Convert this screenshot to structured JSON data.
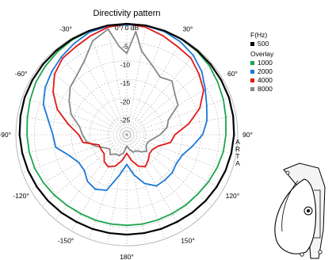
{
  "chart_data": {
    "type": "polar",
    "title": "Directivity pattern",
    "brand_vertical": "ARTA",
    "radial_labels": [
      "0°/ 0 dB",
      "-5",
      "-10",
      "-15",
      "-20",
      "-25"
    ],
    "angle_labels": [
      {
        "angle": 0,
        "text": "0°/ 0 dB"
      },
      {
        "angle": 30,
        "text": "30°"
      },
      {
        "angle": 60,
        "text": "60°"
      },
      {
        "angle": 90,
        "text": "90°"
      },
      {
        "angle": 120,
        "text": "120°"
      },
      {
        "angle": 150,
        "text": "150°"
      },
      {
        "angle": 180,
        "text": "180°"
      },
      {
        "angle": -150,
        "text": "-150°"
      },
      {
        "angle": -120,
        "text": "-120°"
      },
      {
        "angle": -90,
        "text": "-90°"
      },
      {
        "angle": -60,
        "text": "-60°"
      },
      {
        "angle": -30,
        "text": "-30°"
      }
    ],
    "r_range_db": [
      -30,
      0
    ],
    "grid": true,
    "legend": {
      "position": "right",
      "header": "F(Hz)",
      "overlay_label": "Overlay",
      "entries": [
        {
          "name": "500",
          "color": "#000000"
        },
        {
          "name": "1000",
          "color": "#1aa64a"
        },
        {
          "name": "2000",
          "color": "#1c78d6"
        },
        {
          "name": "4000",
          "color": "#e01818"
        },
        {
          "name": "8000",
          "color": "#888888"
        }
      ]
    },
    "series": [
      {
        "name": "500",
        "color": "#000000",
        "angles": [
          -180,
          -170,
          -160,
          -150,
          -140,
          -130,
          -120,
          -110,
          -100,
          -90,
          -80,
          -70,
          -60,
          -50,
          -40,
          -30,
          -20,
          -10,
          0,
          10,
          20,
          30,
          40,
          50,
          60,
          70,
          80,
          90,
          100,
          110,
          120,
          130,
          140,
          150,
          160,
          170,
          180
        ],
        "db": [
          -3.0,
          -3.0,
          -2.9,
          -2.8,
          -2.5,
          -2.2,
          -1.9,
          -1.6,
          -1.3,
          -1.0,
          -0.8,
          -0.6,
          -0.5,
          -0.4,
          -0.3,
          -0.2,
          -0.1,
          0,
          0,
          0,
          -0.1,
          -0.2,
          -0.3,
          -0.4,
          -0.5,
          -0.6,
          -0.8,
          -1.0,
          -1.3,
          -1.6,
          -1.9,
          -2.2,
          -2.5,
          -2.8,
          -2.9,
          -3.0,
          -3.0
        ]
      },
      {
        "name": "1000",
        "color": "#1aa64a",
        "angles": [
          -180,
          -170,
          -160,
          -150,
          -140,
          -130,
          -120,
          -110,
          -100,
          -90,
          -80,
          -70,
          -60,
          -50,
          -40,
          -30,
          -20,
          -10,
          0,
          10,
          20,
          30,
          40,
          50,
          60,
          70,
          80,
          90,
          100,
          110,
          120,
          130,
          140,
          150,
          160,
          170,
          180
        ],
        "db": [
          -5.5,
          -5.5,
          -5.4,
          -5.3,
          -5.0,
          -4.5,
          -4.0,
          -3.5,
          -3.2,
          -3.0,
          -2.7,
          -2.2,
          -1.6,
          -1.2,
          -0.8,
          -0.4,
          -0.2,
          0,
          0,
          0,
          -0.1,
          -0.2,
          -0.5,
          -0.9,
          -1.6,
          -2.2,
          -2.8,
          -3.2,
          -3.5,
          -4.0,
          -4.5,
          -5.0,
          -5.2,
          -5.4,
          -5.5,
          -5.5,
          -5.5
        ]
      },
      {
        "name": "2000",
        "color": "#1c78d6",
        "angles": [
          -180,
          -170,
          -160,
          -150,
          -140,
          -130,
          -120,
          -110,
          -100,
          -90,
          -80,
          -70,
          -60,
          -50,
          -40,
          -30,
          -20,
          -10,
          0,
          10,
          20,
          30,
          40,
          50,
          60,
          70,
          80,
          90,
          100,
          110,
          120,
          130,
          140,
          150,
          160,
          170,
          180
        ],
        "db": [
          -22,
          -19,
          -14,
          -13,
          -13.5,
          -15,
          -15,
          -13.5,
          -10.5,
          -10,
          -8.5,
          -6,
          -4.5,
          -3.5,
          -2.5,
          -1.5,
          -0.5,
          -0.2,
          -0.3,
          -0.1,
          -0.3,
          -1.0,
          -2.0,
          -3.5,
          -5.5,
          -7,
          -8,
          -9.5,
          -12,
          -14,
          -14.5,
          -14,
          -14,
          -14,
          -16,
          -19,
          -22
        ]
      },
      {
        "name": "4000",
        "color": "#e01818",
        "angles": [
          -180,
          -170,
          -160,
          -150,
          -140,
          -130,
          -120,
          -110,
          -100,
          -90,
          -80,
          -70,
          -60,
          -50,
          -40,
          -30,
          -20,
          -10,
          0,
          10,
          20,
          30,
          40,
          50,
          60,
          70,
          80,
          90,
          100,
          110,
          120,
          130,
          140,
          150,
          160,
          170,
          180
        ],
        "db": [
          -25,
          -23,
          -21,
          -20,
          -20.5,
          -22,
          -22,
          -22,
          -18,
          -17,
          -14,
          -10,
          -7,
          -4.5,
          -3,
          -2.5,
          -1.5,
          -0.5,
          0,
          -0.5,
          -1.5,
          -2.5,
          -3,
          -4.5,
          -6,
          -9,
          -13,
          -17,
          -18,
          -21,
          -22,
          -22,
          -21,
          -20,
          -21,
          -23,
          -25
        ]
      },
      {
        "name": "8000",
        "color": "#888888",
        "angles": [
          -180,
          -170,
          -160,
          -150,
          -140,
          -130,
          -120,
          -110,
          -100,
          -90,
          -80,
          -70,
          -60,
          -50,
          -40,
          -30,
          -20,
          -10,
          -5,
          0,
          5,
          10,
          20,
          30,
          40,
          50,
          60,
          70,
          80,
          90,
          100,
          110,
          120,
          130,
          140,
          150,
          160,
          170,
          180
        ],
        "db": [
          -27,
          -25,
          -24,
          -24,
          -23,
          -24,
          -23,
          -21,
          -19,
          -18,
          -17,
          -14,
          -12,
          -10,
          -9,
          -7,
          -3,
          -1,
          -6,
          -8,
          -2,
          -7,
          -10,
          -12,
          -11,
          -13,
          -14,
          -18,
          -19,
          -21,
          -23,
          -24,
          -24,
          -23,
          -24,
          -25,
          -25,
          -26,
          -27
        ]
      }
    ]
  }
}
